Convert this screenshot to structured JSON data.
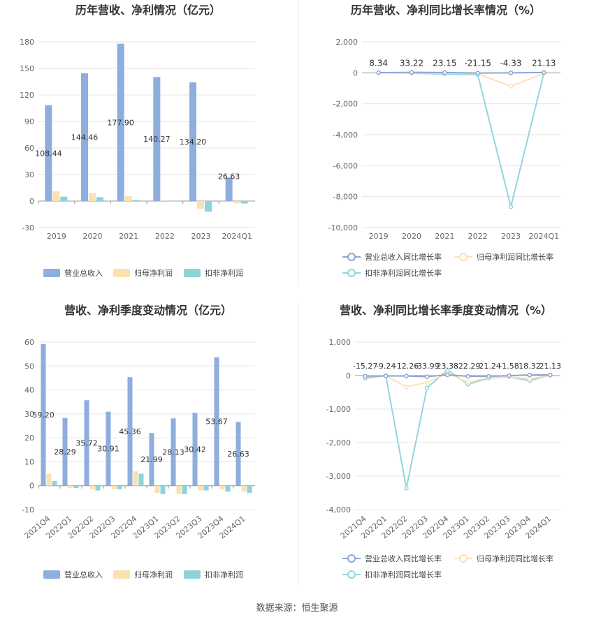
{
  "footer": {
    "source": "数据来源：恒生聚源"
  },
  "colors": {
    "revenue": "#8eaedd",
    "parent_profit": "#fbe0b0",
    "deducted_profit": "#8ed3d9"
  },
  "chart_data": [
    {
      "type": "bar",
      "title": "历年营收、净利情况（亿元）",
      "categories": [
        "2019",
        "2020",
        "2021",
        "2022",
        "2023",
        "2024Q1"
      ],
      "ylim": [
        -30,
        180
      ],
      "yticks": [
        -30,
        0,
        30,
        60,
        90,
        120,
        150,
        180
      ],
      "series": [
        {
          "name": "营业总收入",
          "values": [
            108.44,
            144.46,
            177.9,
            140.27,
            134.2,
            26.63
          ]
        },
        {
          "name": "归母净利润",
          "values": [
            11,
            9,
            5.5,
            1,
            -9,
            -2.5
          ]
        },
        {
          "name": "扣非净利润",
          "values": [
            5,
            4.5,
            1.2,
            0.2,
            -12,
            -2.8
          ]
        }
      ],
      "labels": [
        "108.44",
        "144.46",
        "177.90",
        "140.27",
        "134.20",
        "26.63"
      ],
      "legend": "bottom",
      "grid": true
    },
    {
      "type": "line",
      "title": "历年营收、净利同比增长率情况（%）",
      "categories": [
        "2019",
        "2020",
        "2021",
        "2022",
        "2023",
        "2024Q1"
      ],
      "ylim": [
        -10000,
        2000
      ],
      "yticks": [
        -10000,
        -8000,
        -6000,
        -4000,
        -2000,
        0,
        2000
      ],
      "ytick_labels": [
        "-10,000",
        "-8,000",
        "-6,000",
        "-4,000",
        "-2,000",
        "0",
        "2,000"
      ],
      "series": [
        {
          "name": "营业总收入同比增长率",
          "values": [
            8.34,
            33.22,
            23.15,
            -21.15,
            -4.33,
            21.13
          ]
        },
        {
          "name": "归母净利润同比增长率",
          "values": [
            10,
            0,
            -20,
            -60,
            -870,
            -30
          ]
        },
        {
          "name": "扣非净利润同比增长率",
          "values": [
            15,
            -20,
            -80,
            -120,
            -8650,
            -10
          ]
        }
      ],
      "labels": [
        "8.34",
        "33.22",
        "23.15",
        "-21.15",
        "-4.33",
        "21.13"
      ],
      "legend": "bottom",
      "grid": true
    },
    {
      "type": "bar",
      "title": "营收、净利季度变动情况（亿元）",
      "categories": [
        "2021Q4",
        "2022Q1",
        "2022Q2",
        "2022Q3",
        "2022Q4",
        "2023Q1",
        "2023Q2",
        "2023Q3",
        "2023Q4",
        "2024Q1"
      ],
      "ylim": [
        -10,
        60
      ],
      "yticks": [
        -10,
        0,
        10,
        20,
        30,
        40,
        50,
        60
      ],
      "series": [
        {
          "name": "营业总收入",
          "values": [
            59.2,
            28.29,
            35.72,
            30.91,
            45.36,
            21.99,
            28.13,
            30.42,
            53.67,
            26.63
          ]
        },
        {
          "name": "归母净利润",
          "values": [
            5,
            -1,
            -1.5,
            -1.5,
            6,
            -3,
            -3.5,
            -2,
            -1.5,
            -2.5
          ]
        },
        {
          "name": "扣非净利润",
          "values": [
            2,
            -1,
            -2,
            -1.5,
            5,
            -3.5,
            -3.5,
            -2,
            -2.5,
            -3
          ]
        }
      ],
      "labels": [
        "59.20",
        "28.29",
        "35.72",
        "30.91",
        "45.36",
        "21.99",
        "28.13",
        "30.42",
        "53.67",
        "26.63"
      ],
      "legend": "bottom",
      "grid": true
    },
    {
      "type": "line",
      "title": "营收、净利同比增长率季度变动情况（%）",
      "categories": [
        "2021Q4",
        "2022Q1",
        "2022Q2",
        "2022Q3",
        "2022Q4",
        "2023Q1",
        "2023Q2",
        "2023Q3",
        "2023Q4",
        "2024Q1"
      ],
      "ylim": [
        -4000,
        1000
      ],
      "yticks": [
        -4000,
        -3000,
        -2000,
        -1000,
        0,
        1000
      ],
      "ytick_labels": [
        "-4,000",
        "-3,000",
        "-2,000",
        "-1,000",
        "0",
        "1,000"
      ],
      "series": [
        {
          "name": "营业总收入同比增长率",
          "values": [
            -15.27,
            -9.24,
            -12.26,
            -33.99,
            23.38,
            -22.29,
            -21.24,
            -1.58,
            18.32,
            21.13
          ]
        },
        {
          "name": "归母净利润同比增长率",
          "values": [
            -30,
            0,
            -340,
            -200,
            60,
            -200,
            -60,
            -40,
            -100,
            0
          ]
        },
        {
          "name": "扣非净利润同比增长率",
          "values": [
            -80,
            0,
            -3360,
            -370,
            160,
            -260,
            -80,
            -40,
            -150,
            10
          ]
        }
      ],
      "labels": [
        "-15.27",
        "-9.24",
        "-12.26",
        "-33.99",
        "23.38",
        "-22.29",
        "-21.24",
        "-1.58",
        "18.32",
        "21.13"
      ],
      "legend": "bottom",
      "grid": true
    }
  ]
}
